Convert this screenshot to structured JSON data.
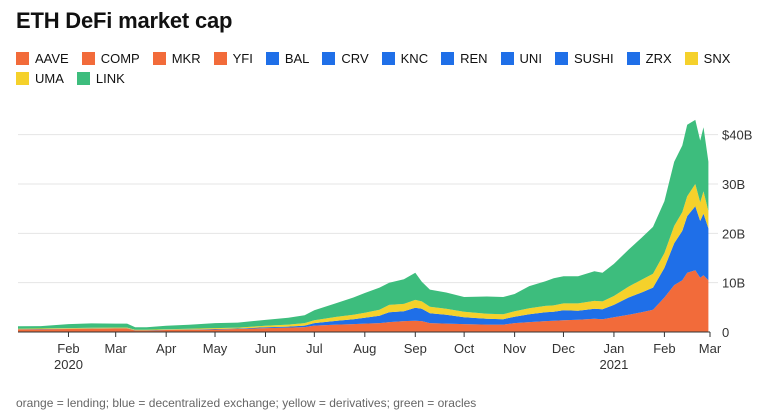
{
  "title": "ETH DeFi market cap",
  "footnote": "orange = lending; blue = decentralized exchange; yellow = derivatives; green = oracles",
  "colors": {
    "lending": "#f26b3a",
    "dex": "#1f6fe8",
    "derivatives": "#f5d12b",
    "oracles": "#3dbd7d",
    "grid": "#e4e4e4",
    "axis": "#333333"
  },
  "legend": [
    {
      "label": "AAVE",
      "color": "#f26b3a"
    },
    {
      "label": "COMP",
      "color": "#f26b3a"
    },
    {
      "label": "MKR",
      "color": "#f26b3a"
    },
    {
      "label": "YFI",
      "color": "#f26b3a"
    },
    {
      "label": "BAL",
      "color": "#1f6fe8"
    },
    {
      "label": "CRV",
      "color": "#1f6fe8"
    },
    {
      "label": "KNC",
      "color": "#1f6fe8"
    },
    {
      "label": "REN",
      "color": "#1f6fe8"
    },
    {
      "label": "UNI",
      "color": "#1f6fe8"
    },
    {
      "label": "SUSHI",
      "color": "#1f6fe8"
    },
    {
      "label": "ZRX",
      "color": "#1f6fe8"
    },
    {
      "label": "SNX",
      "color": "#f5d12b"
    },
    {
      "label": "UMA",
      "color": "#f5d12b"
    },
    {
      "label": "LINK",
      "color": "#3dbd7d"
    }
  ],
  "chart_data": {
    "type": "area",
    "stacked": true,
    "x_start": "2020-01-01",
    "x_end": "2021-03-01",
    "x_ticks": [
      {
        "date": "2020-02-01",
        "label": "Feb",
        "sublabel": "2020"
      },
      {
        "date": "2020-03-01",
        "label": "Mar",
        "sublabel": ""
      },
      {
        "date": "2020-04-01",
        "label": "Apr",
        "sublabel": ""
      },
      {
        "date": "2020-05-01",
        "label": "May",
        "sublabel": ""
      },
      {
        "date": "2020-06-01",
        "label": "Jun",
        "sublabel": ""
      },
      {
        "date": "2020-07-01",
        "label": "Jul",
        "sublabel": ""
      },
      {
        "date": "2020-08-01",
        "label": "Aug",
        "sublabel": ""
      },
      {
        "date": "2020-09-01",
        "label": "Sep",
        "sublabel": ""
      },
      {
        "date": "2020-10-01",
        "label": "Oct",
        "sublabel": ""
      },
      {
        "date": "2020-11-01",
        "label": "Nov",
        "sublabel": ""
      },
      {
        "date": "2020-12-01",
        "label": "Dec",
        "sublabel": ""
      },
      {
        "date": "2021-01-01",
        "label": "Jan",
        "sublabel": "2021"
      },
      {
        "date": "2021-02-01",
        "label": "Feb",
        "sublabel": ""
      },
      {
        "date": "2021-03-01",
        "label": "Mar",
        "sublabel": ""
      }
    ],
    "y_ticks": [
      {
        "value": 0,
        "label": "0"
      },
      {
        "value": 10,
        "label": "10B"
      },
      {
        "value": 20,
        "label": "20B"
      },
      {
        "value": 30,
        "label": "30B"
      },
      {
        "value": 40,
        "label": "$40B"
      }
    ],
    "ylim": [
      0,
      45
    ],
    "y_unit": "billion USD",
    "grid": true,
    "legend_position": "top",
    "dates": [
      "2020-01-01",
      "2020-01-15",
      "2020-02-01",
      "2020-02-15",
      "2020-03-01",
      "2020-03-08",
      "2020-03-13",
      "2020-03-20",
      "2020-04-01",
      "2020-04-15",
      "2020-05-01",
      "2020-05-15",
      "2020-06-01",
      "2020-06-15",
      "2020-06-25",
      "2020-07-01",
      "2020-07-15",
      "2020-07-25",
      "2020-08-01",
      "2020-08-10",
      "2020-08-16",
      "2020-08-25",
      "2020-09-01",
      "2020-09-05",
      "2020-09-10",
      "2020-09-20",
      "2020-10-01",
      "2020-10-15",
      "2020-10-25",
      "2020-11-01",
      "2020-11-10",
      "2020-11-20",
      "2020-11-25",
      "2020-12-01",
      "2020-12-10",
      "2020-12-20",
      "2020-12-25",
      "2021-01-01",
      "2021-01-10",
      "2021-01-18",
      "2021-01-25",
      "2021-02-01",
      "2021-02-07",
      "2021-02-12",
      "2021-02-15",
      "2021-02-20",
      "2021-02-23",
      "2021-02-25",
      "2021-02-28"
    ],
    "series": [
      {
        "name": "lending",
        "color": "#f26b3a",
        "values": [
          0.5,
          0.55,
          0.6,
          0.65,
          0.7,
          0.7,
          0.3,
          0.3,
          0.4,
          0.45,
          0.5,
          0.6,
          0.8,
          0.9,
          1.0,
          1.3,
          1.5,
          1.6,
          1.7,
          1.8,
          2.0,
          2.2,
          2.3,
          2.2,
          1.8,
          1.7,
          1.6,
          1.5,
          1.5,
          1.8,
          2.0,
          2.2,
          2.3,
          2.4,
          2.5,
          2.7,
          2.6,
          3.0,
          3.5,
          4.0,
          4.5,
          7.0,
          9.5,
          10.5,
          12.0,
          12.5,
          11.0,
          11.5,
          10.5
        ]
      },
      {
        "name": "decentralized exchange",
        "color": "#1f6fe8",
        "values": [
          0.05,
          0.05,
          0.05,
          0.05,
          0.05,
          0.05,
          0.05,
          0.05,
          0.05,
          0.05,
          0.1,
          0.1,
          0.15,
          0.2,
          0.3,
          0.5,
          0.8,
          1.0,
          1.2,
          1.5,
          2.0,
          2.0,
          2.6,
          2.5,
          2.0,
          1.8,
          1.4,
          1.2,
          1.1,
          1.3,
          1.6,
          1.8,
          1.8,
          2.0,
          1.8,
          2.0,
          2.0,
          2.5,
          3.5,
          4.0,
          4.5,
          6.0,
          8.5,
          10.0,
          11.5,
          13.0,
          11.5,
          12.5,
          10.5
        ]
      },
      {
        "name": "derivatives",
        "color": "#f5d12b",
        "values": [
          0.1,
          0.1,
          0.15,
          0.15,
          0.15,
          0.15,
          0.1,
          0.1,
          0.1,
          0.15,
          0.2,
          0.2,
          0.3,
          0.4,
          0.5,
          0.6,
          0.8,
          0.9,
          1.0,
          1.2,
          1.5,
          1.5,
          1.6,
          1.5,
          1.3,
          1.2,
          1.1,
          1.0,
          1.0,
          1.1,
          1.2,
          1.3,
          1.3,
          1.4,
          1.5,
          1.6,
          1.6,
          1.8,
          2.2,
          2.6,
          2.8,
          3.0,
          3.5,
          3.8,
          4.0,
          4.5,
          3.8,
          4.5,
          3.5
        ]
      },
      {
        "name": "oracles",
        "color": "#3dbd7d",
        "values": [
          0.5,
          0.5,
          0.8,
          0.9,
          0.8,
          0.8,
          0.5,
          0.5,
          0.7,
          0.8,
          1.0,
          1.0,
          1.2,
          1.4,
          1.6,
          2.0,
          2.8,
          3.5,
          4.0,
          4.5,
          4.5,
          5.0,
          5.5,
          4.0,
          3.5,
          3.3,
          3.0,
          3.5,
          3.5,
          3.5,
          4.5,
          5.0,
          5.5,
          5.5,
          5.5,
          6.0,
          5.8,
          6.5,
          7.5,
          8.5,
          9.5,
          10.5,
          13.0,
          13.5,
          14.5,
          13.0,
          12.5,
          13.0,
          10.0
        ]
      }
    ]
  }
}
